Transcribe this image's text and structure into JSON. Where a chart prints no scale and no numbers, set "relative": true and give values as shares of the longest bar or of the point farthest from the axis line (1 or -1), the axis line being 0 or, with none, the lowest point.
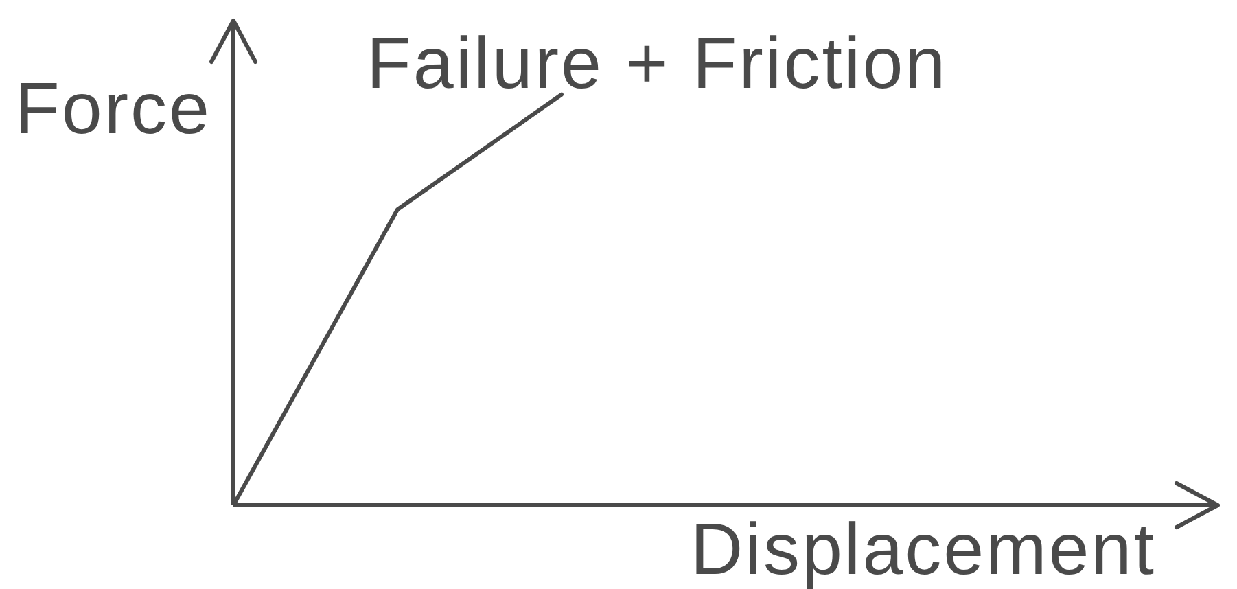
{
  "chart_data": {
    "type": "line",
    "relative": true,
    "xlabel": "Displacement",
    "ylabel": "Force",
    "categories": [
      null,
      null,
      null,
      null,
      null,
      null,
      null
    ],
    "series": [
      {
        "name": "Failure + Friction",
        "color": "#4a4a4a",
        "values": [
          0,
          0.72,
          1,
          null,
          null,
          null,
          null
        ]
      }
    ],
    "grid": false,
    "marker": "none",
    "line_style": "solid"
  }
}
